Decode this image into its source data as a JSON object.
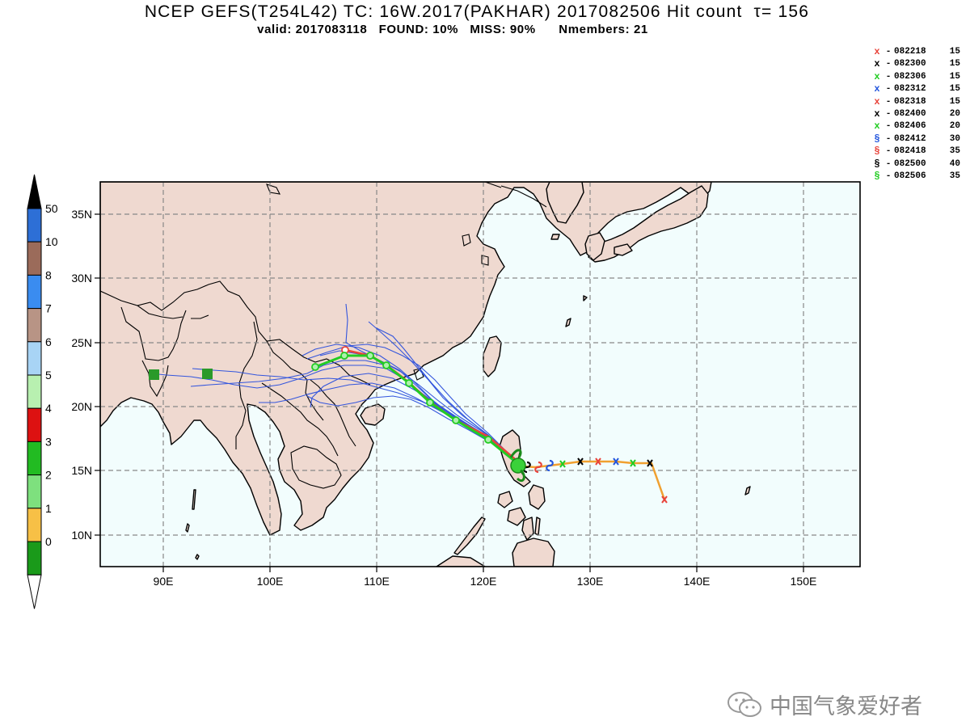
{
  "title": {
    "line1": "NCEP GEFS(T254L42) TC: 16W.2017(PAKHAR) 2017082506 Hit count  τ= 156",
    "line2": "valid: 2017083118   FOUND: 10%   MISS: 90%      Nmembers: 21"
  },
  "legend": [
    {
      "symbol": "x",
      "label": "082218",
      "count": "15",
      "color": "#e8433a"
    },
    {
      "symbol": "x",
      "label": "082300",
      "count": "15",
      "color": "#000000"
    },
    {
      "symbol": "x",
      "label": "082306",
      "count": "15",
      "color": "#22cc22"
    },
    {
      "symbol": "x",
      "label": "082312",
      "count": "15",
      "color": "#2255dd"
    },
    {
      "symbol": "x",
      "label": "082318",
      "count": "15",
      "color": "#e8433a"
    },
    {
      "symbol": "x",
      "label": "082400",
      "count": "20",
      "color": "#000000"
    },
    {
      "symbol": "x",
      "label": "082406",
      "count": "20",
      "color": "#22cc22"
    },
    {
      "symbol": "§",
      "label": "082412",
      "count": "30",
      "color": "#2255dd"
    },
    {
      "symbol": "§",
      "label": "082418",
      "count": "35",
      "color": "#e8433a"
    },
    {
      "symbol": "§",
      "label": "082500",
      "count": "40",
      "color": "#000000"
    },
    {
      "symbol": "§",
      "label": "082506",
      "count": "35",
      "color": "#22cc22"
    }
  ],
  "colorbar": {
    "labels": [
      "50",
      "10",
      "8",
      "7",
      "6",
      "5",
      "4",
      "3",
      "2",
      "1",
      "0"
    ],
    "colors": [
      "#2d6fd6",
      "#9b6b5a",
      "#3a8cf0",
      "#b89485",
      "#a8d4f5",
      "#b8f0b0",
      "#dd1111",
      "#22bb22",
      "#7ee07e",
      "#f7c046",
      "#1a9a1a"
    ],
    "top_arrow_color": "#000000",
    "bottom_arrow_color": "#ffffff"
  },
  "map": {
    "lon_ticks": [
      "90E",
      "100E",
      "110E",
      "120E",
      "130E",
      "140E",
      "150E"
    ],
    "lat_ticks": [
      "35N",
      "30N",
      "25N",
      "20N",
      "15N",
      "10N"
    ],
    "land_color": "#efd9d0",
    "ocean_color": "#f2fdfd",
    "grid": "dashed"
  },
  "watermark": {
    "text": "中国气象爱好者"
  }
}
